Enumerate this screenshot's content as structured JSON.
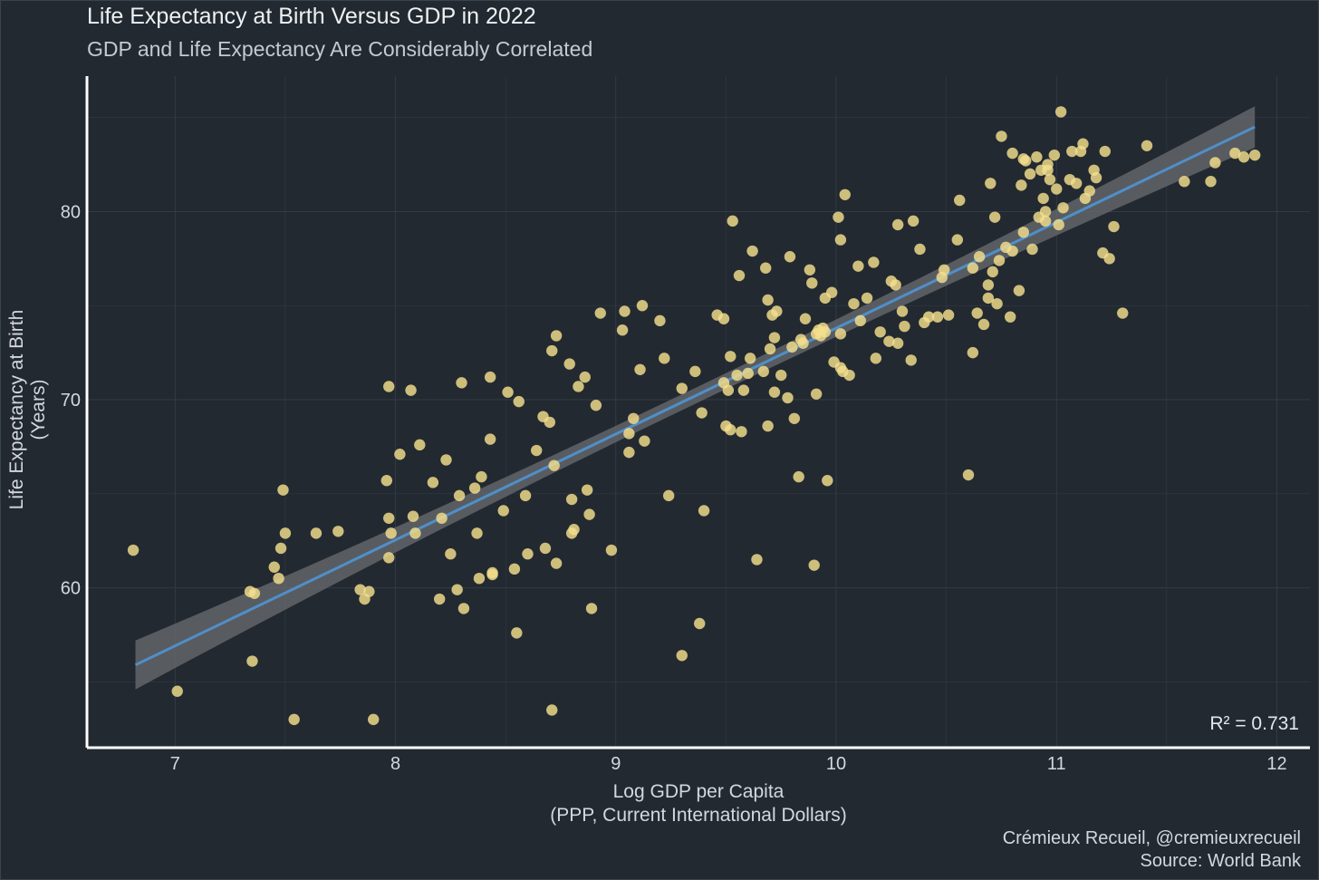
{
  "chart_data": {
    "type": "scatter",
    "title": "Life Expectancy at Birth Versus GDP in 2022",
    "subtitle": "GDP and Life Expectancy Are Considerably Correlated",
    "xlabel_line1": "Log GDP per Capita",
    "xlabel_line2": "(PPP, Current International Dollars)",
    "ylabel_line1": "Life Expectancy at Birth",
    "ylabel_line2": "(Years)",
    "xlim": [
      6.6,
      12.15
    ],
    "ylim": [
      51.5,
      87.2
    ],
    "x_ticks": [
      7,
      8,
      9,
      10,
      11,
      12
    ],
    "y_ticks": [
      60,
      70,
      80
    ],
    "grid": true,
    "annotation": "R² = 0.731",
    "caption_line1": "Crémieux Recueil, @cremieuxrecueil",
    "caption_line2": "Source: World Bank",
    "fit": {
      "x": [
        6.82,
        11.9
      ],
      "y": [
        55.9,
        84.5
      ],
      "ci_halfwidth": [
        1.3,
        1.1
      ]
    },
    "colors": {
      "background": "#222931",
      "point": "#f4df8c",
      "fit_line": "#4f8fc9",
      "ci_band": "#6b6e72",
      "grid": "#323a44",
      "axis": "#ffffff"
    },
    "points": [
      [
        6.81,
        62.0
      ],
      [
        7.01,
        54.5
      ],
      [
        7.34,
        59.8
      ],
      [
        7.35,
        56.1
      ],
      [
        7.36,
        59.7
      ],
      [
        7.45,
        61.1
      ],
      [
        7.47,
        60.5
      ],
      [
        7.48,
        62.1
      ],
      [
        7.49,
        65.2
      ],
      [
        7.5,
        62.9
      ],
      [
        7.54,
        53.0
      ],
      [
        7.64,
        62.9
      ],
      [
        7.74,
        63.0
      ],
      [
        7.84,
        59.9
      ],
      [
        7.86,
        59.4
      ],
      [
        7.88,
        59.8
      ],
      [
        7.9,
        53.0
      ],
      [
        7.96,
        65.7
      ],
      [
        7.97,
        63.7
      ],
      [
        7.97,
        61.6
      ],
      [
        7.97,
        70.7
      ],
      [
        7.98,
        62.9
      ],
      [
        8.02,
        67.1
      ],
      [
        8.07,
        70.5
      ],
      [
        8.08,
        63.8
      ],
      [
        8.09,
        62.9
      ],
      [
        8.11,
        67.6
      ],
      [
        8.17,
        65.6
      ],
      [
        8.2,
        59.4
      ],
      [
        8.21,
        63.7
      ],
      [
        8.23,
        66.8
      ],
      [
        8.25,
        61.8
      ],
      [
        8.28,
        59.9
      ],
      [
        8.29,
        64.9
      ],
      [
        8.3,
        70.9
      ],
      [
        8.31,
        58.9
      ],
      [
        8.36,
        65.3
      ],
      [
        8.37,
        62.9
      ],
      [
        8.38,
        60.5
      ],
      [
        8.39,
        65.9
      ],
      [
        8.43,
        67.9
      ],
      [
        8.43,
        71.2
      ],
      [
        8.44,
        60.8
      ],
      [
        8.44,
        60.7
      ],
      [
        8.49,
        64.1
      ],
      [
        8.51,
        70.4
      ],
      [
        8.54,
        61.0
      ],
      [
        8.55,
        57.6
      ],
      [
        8.56,
        69.9
      ],
      [
        8.59,
        64.9
      ],
      [
        8.6,
        61.8
      ],
      [
        8.64,
        67.3
      ],
      [
        8.67,
        69.1
      ],
      [
        8.68,
        62.1
      ],
      [
        8.7,
        68.8
      ],
      [
        8.71,
        72.6
      ],
      [
        8.71,
        53.5
      ],
      [
        8.72,
        66.5
      ],
      [
        8.73,
        73.4
      ],
      [
        8.73,
        61.3
      ],
      [
        8.79,
        71.9
      ],
      [
        8.8,
        64.7
      ],
      [
        8.8,
        62.9
      ],
      [
        8.81,
        63.1
      ],
      [
        8.83,
        70.7
      ],
      [
        8.86,
        71.2
      ],
      [
        8.87,
        65.2
      ],
      [
        8.88,
        63.9
      ],
      [
        8.89,
        58.9
      ],
      [
        8.91,
        69.7
      ],
      [
        8.93,
        74.6
      ],
      [
        8.98,
        62.0
      ],
      [
        9.03,
        73.7
      ],
      [
        9.04,
        74.7
      ],
      [
        9.06,
        68.2
      ],
      [
        9.06,
        67.2
      ],
      [
        9.08,
        69.0
      ],
      [
        9.11,
        71.6
      ],
      [
        9.12,
        75.0
      ],
      [
        9.13,
        67.8
      ],
      [
        9.2,
        74.2
      ],
      [
        9.22,
        72.2
      ],
      [
        9.24,
        64.9
      ],
      [
        9.3,
        70.6
      ],
      [
        9.3,
        56.4
      ],
      [
        9.36,
        71.5
      ],
      [
        9.38,
        58.1
      ],
      [
        9.39,
        69.3
      ],
      [
        9.4,
        64.1
      ],
      [
        9.46,
        74.5
      ],
      [
        9.49,
        74.3
      ],
      [
        9.49,
        70.9
      ],
      [
        9.5,
        68.6
      ],
      [
        9.51,
        70.5
      ],
      [
        9.52,
        68.4
      ],
      [
        9.52,
        72.3
      ],
      [
        9.53,
        79.5
      ],
      [
        9.55,
        71.3
      ],
      [
        9.56,
        76.6
      ],
      [
        9.57,
        68.3
      ],
      [
        9.58,
        70.5
      ],
      [
        9.6,
        71.4
      ],
      [
        9.61,
        72.2
      ],
      [
        9.62,
        77.9
      ],
      [
        9.64,
        61.5
      ],
      [
        9.67,
        71.5
      ],
      [
        9.68,
        77.0
      ],
      [
        9.69,
        68.6
      ],
      [
        9.69,
        75.3
      ],
      [
        9.7,
        72.7
      ],
      [
        9.71,
        74.5
      ],
      [
        9.72,
        73.3
      ],
      [
        9.73,
        74.7
      ],
      [
        9.75,
        71.3
      ],
      [
        9.78,
        70.1
      ],
      [
        9.79,
        77.6
      ],
      [
        9.8,
        72.8
      ],
      [
        9.81,
        69.0
      ],
      [
        9.83,
        65.9
      ],
      [
        9.85,
        73.0
      ],
      [
        9.86,
        74.3
      ],
      [
        9.88,
        76.9
      ],
      [
        9.89,
        76.2
      ],
      [
        9.9,
        61.2
      ],
      [
        9.91,
        73.5
      ],
      [
        9.91,
        70.3
      ],
      [
        9.92,
        73.7
      ],
      [
        9.93,
        73.4
      ],
      [
        9.94,
        73.8
      ],
      [
        9.95,
        75.4
      ],
      [
        9.96,
        65.7
      ],
      [
        9.98,
        75.7
      ],
      [
        9.99,
        72.0
      ],
      [
        10.01,
        79.7
      ],
      [
        10.02,
        78.5
      ],
      [
        10.02,
        73.5
      ],
      [
        10.03,
        71.5
      ],
      [
        10.04,
        80.9
      ],
      [
        10.06,
        71.3
      ],
      [
        10.08,
        75.1
      ],
      [
        10.1,
        77.1
      ],
      [
        10.11,
        74.2
      ],
      [
        10.14,
        75.4
      ],
      [
        10.17,
        77.3
      ],
      [
        10.18,
        72.2
      ],
      [
        10.2,
        73.6
      ],
      [
        10.24,
        73.1
      ],
      [
        10.25,
        76.3
      ],
      [
        10.27,
        76.1
      ],
      [
        10.28,
        79.3
      ],
      [
        10.3,
        74.7
      ],
      [
        10.31,
        73.9
      ],
      [
        10.34,
        72.1
      ],
      [
        10.35,
        79.5
      ],
      [
        10.38,
        78.0
      ],
      [
        10.4,
        74.1
      ],
      [
        10.42,
        74.4
      ],
      [
        10.46,
        74.4
      ],
      [
        10.48,
        76.5
      ],
      [
        10.49,
        76.9
      ],
      [
        10.51,
        74.5
      ],
      [
        10.55,
        78.5
      ],
      [
        10.56,
        80.6
      ],
      [
        10.6,
        66.0
      ],
      [
        10.62,
        72.5
      ],
      [
        10.62,
        77.0
      ],
      [
        10.64,
        74.6
      ],
      [
        10.65,
        77.6
      ],
      [
        10.67,
        74.0
      ],
      [
        10.69,
        75.4
      ],
      [
        10.69,
        76.1
      ],
      [
        10.7,
        81.5
      ],
      [
        10.71,
        76.8
      ],
      [
        10.72,
        79.7
      ],
      [
        10.73,
        75.1
      ],
      [
        10.74,
        77.4
      ],
      [
        10.75,
        84.0
      ],
      [
        10.77,
        78.1
      ],
      [
        10.79,
        74.4
      ],
      [
        10.8,
        83.1
      ],
      [
        10.83,
        75.8
      ],
      [
        10.84,
        81.4
      ],
      [
        10.85,
        78.9
      ],
      [
        10.86,
        82.7
      ],
      [
        10.88,
        82.0
      ],
      [
        10.89,
        78.0
      ],
      [
        10.91,
        82.9
      ],
      [
        10.92,
        79.7
      ],
      [
        10.93,
        82.2
      ],
      [
        10.94,
        80.7
      ],
      [
        10.95,
        80.0
      ],
      [
        10.96,
        82.5
      ],
      [
        10.97,
        81.7
      ],
      [
        10.99,
        83.0
      ],
      [
        11.0,
        81.2
      ],
      [
        11.01,
        79.3
      ],
      [
        11.02,
        85.3
      ],
      [
        11.03,
        80.2
      ],
      [
        11.07,
        83.2
      ],
      [
        11.09,
        81.5
      ],
      [
        11.11,
        83.2
      ],
      [
        11.12,
        83.6
      ],
      [
        11.13,
        80.7
      ],
      [
        11.15,
        81.1
      ],
      [
        11.17,
        82.2
      ],
      [
        11.18,
        81.8
      ],
      [
        11.21,
        77.8
      ],
      [
        11.22,
        83.2
      ],
      [
        11.24,
        77.5
      ],
      [
        11.26,
        79.2
      ],
      [
        11.3,
        74.6
      ],
      [
        11.41,
        83.5
      ],
      [
        11.58,
        81.6
      ],
      [
        11.7,
        81.6
      ],
      [
        11.72,
        82.6
      ],
      [
        11.81,
        83.1
      ],
      [
        11.85,
        82.9
      ],
      [
        11.9,
        83.0
      ],
      [
        10.85,
        82.8
      ],
      [
        10.96,
        82.2
      ],
      [
        11.06,
        81.7
      ],
      [
        10.8,
        77.9
      ],
      [
        10.95,
        79.5
      ],
      [
        9.95,
        73.6
      ],
      [
        9.84,
        73.2
      ],
      [
        10.28,
        73.0
      ],
      [
        10.02,
        71.7
      ],
      [
        9.72,
        70.4
      ]
    ]
  }
}
